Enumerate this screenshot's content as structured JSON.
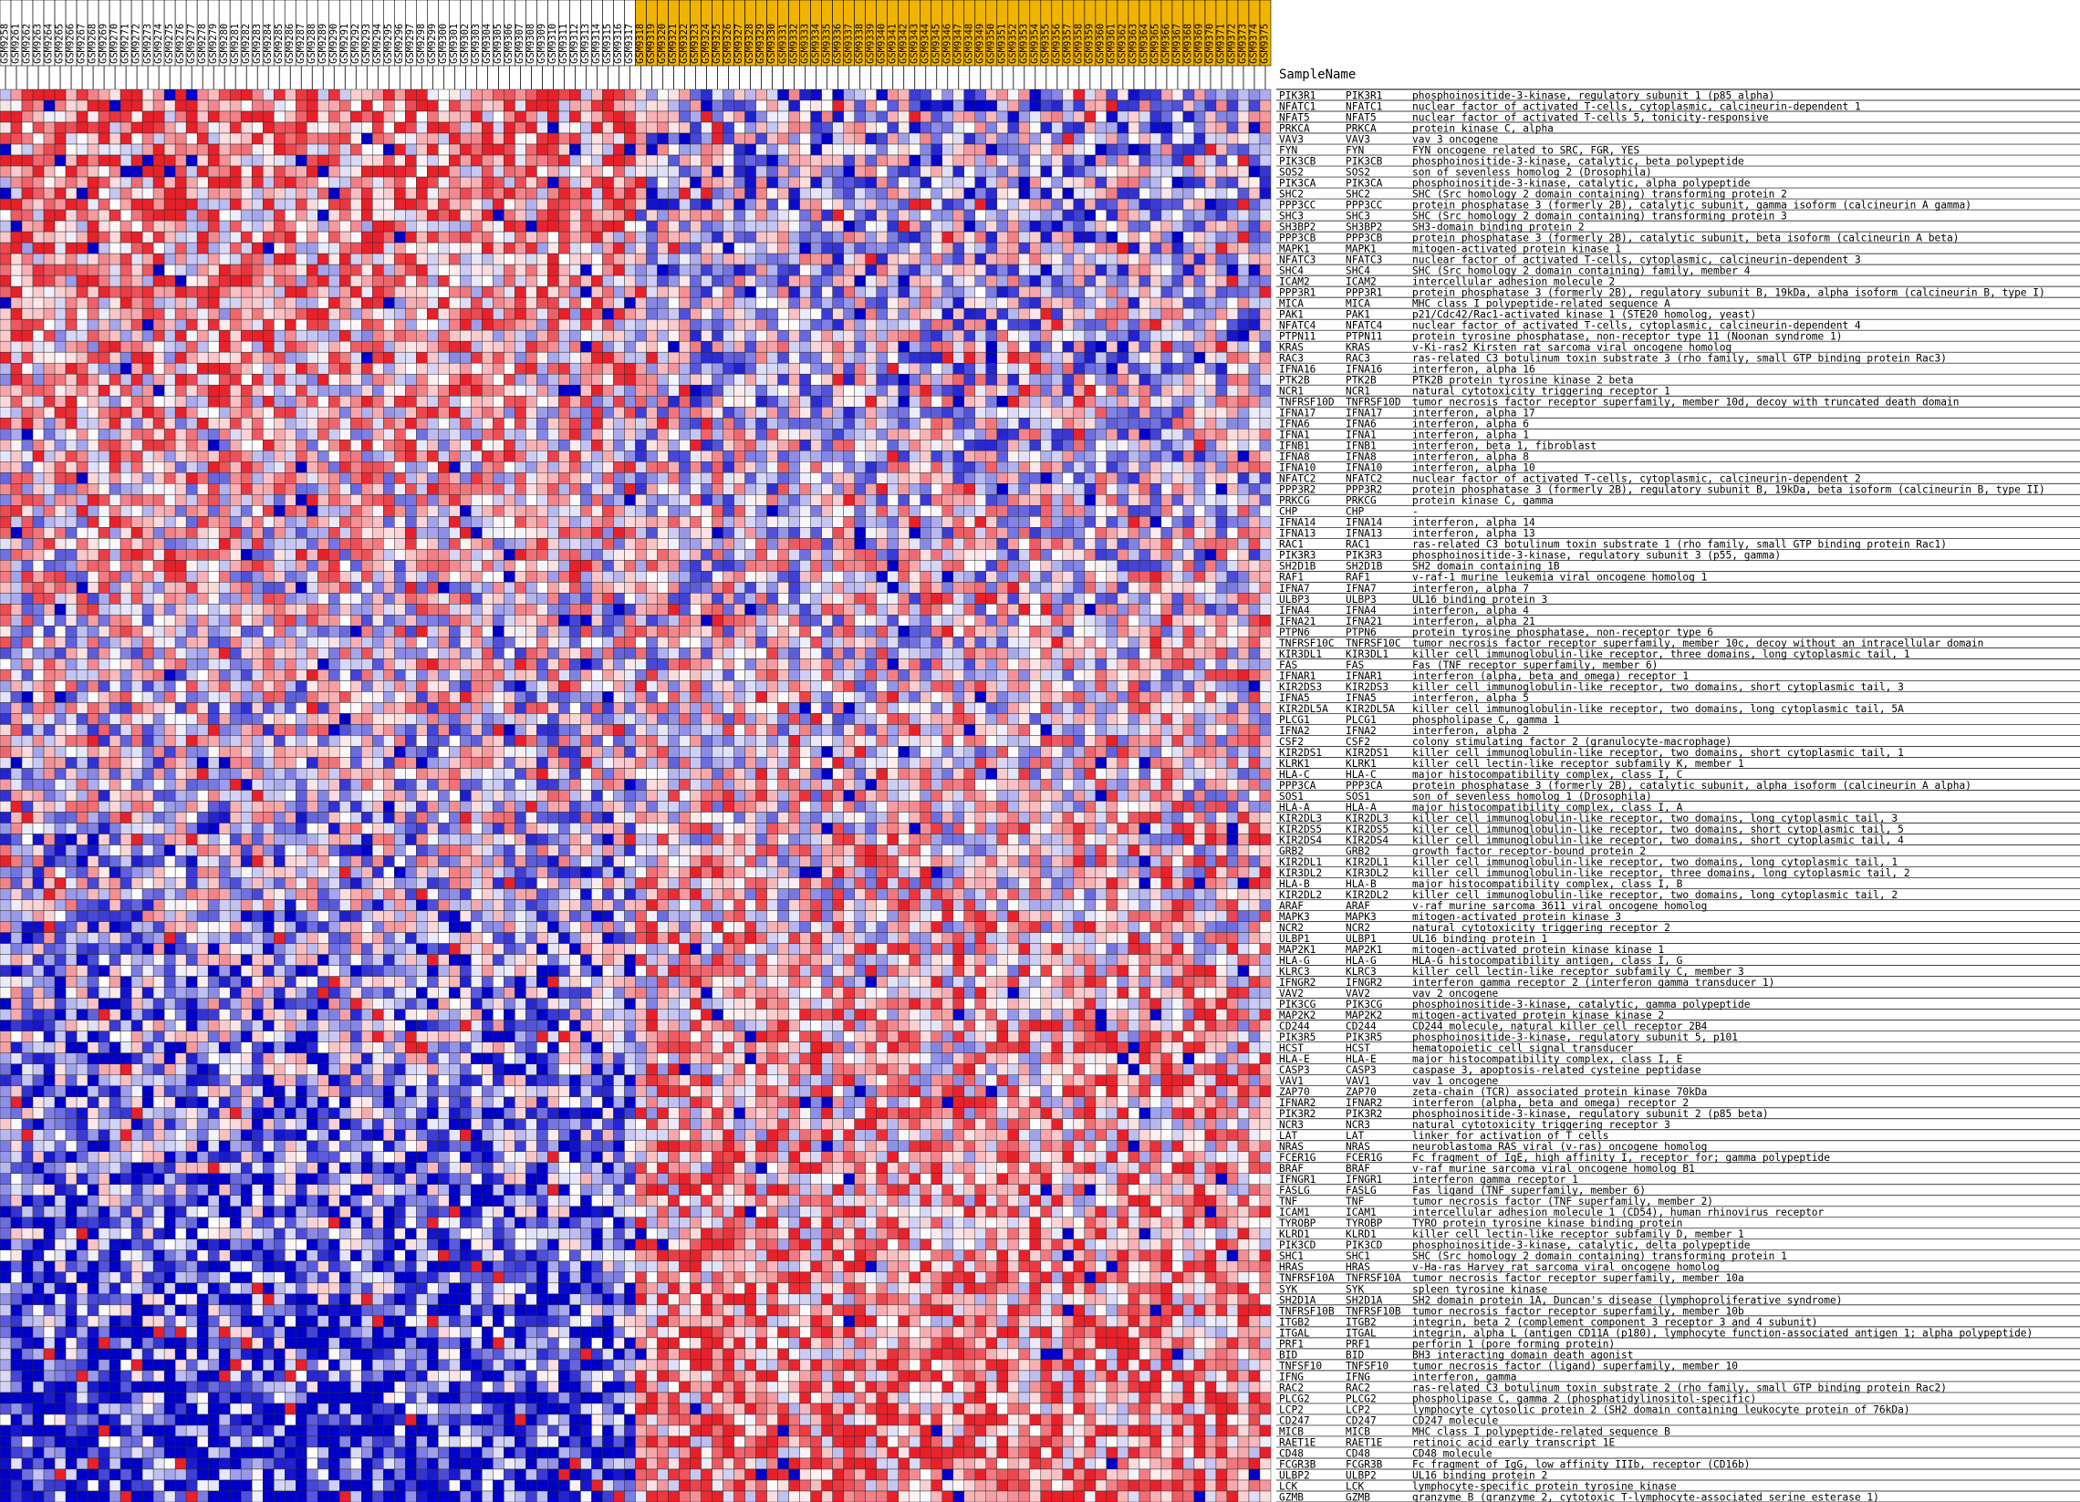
{
  "header": {
    "sample_name_label": "SampleName"
  },
  "chart_data": {
    "type": "heatmap",
    "title": "",
    "row_header": "SampleName",
    "n_columns": 116,
    "column_group_colors": {
      "group_a": "#ffffff",
      "group_b": "#f0b400"
    },
    "column_groups": {
      "group_a_count": 58,
      "group_b_count": 58
    },
    "columns": [
      "GSM9258",
      "GSM9261",
      "GSM9262",
      "GSM9263",
      "GSM9264",
      "GSM9265",
      "GSM9266",
      "GSM9267",
      "GSM9268",
      "GSM9269",
      "GSM9270",
      "GSM9271",
      "GSM9272",
      "GSM9273",
      "GSM9274",
      "GSM9275",
      "GSM9276",
      "GSM9277",
      "GSM9278",
      "GSM9279",
      "GSM9280",
      "GSM9281",
      "GSM9282",
      "GSM9283",
      "GSM9284",
      "GSM9285",
      "GSM9286",
      "GSM9287",
      "GSM9288",
      "GSM9289",
      "GSM9290",
      "GSM9291",
      "GSM9292",
      "GSM9293",
      "GSM9294",
      "GSM9295",
      "GSM9296",
      "GSM9297",
      "GSM9298",
      "GSM9299",
      "GSM9300",
      "GSM9301",
      "GSM9302",
      "GSM9303",
      "GSM9304",
      "GSM9305",
      "GSM9306",
      "GSM9307",
      "GSM9308",
      "GSM9309",
      "GSM9310",
      "GSM9311",
      "GSM9312",
      "GSM9313",
      "GSM9314",
      "GSM9315",
      "GSM9316",
      "GSM9317",
      "GSM9318",
      "GSM9319",
      "GSM9320",
      "GSM9321",
      "GSM9322",
      "GSM9323",
      "GSM9324",
      "GSM9325",
      "GSM9326",
      "GSM9327",
      "GSM9328",
      "GSM9329",
      "GSM9330",
      "GSM9331",
      "GSM9332",
      "GSM9333",
      "GSM9334",
      "GSM9335",
      "GSM9336",
      "GSM9337",
      "GSM9338",
      "GSM9339",
      "GSM9340",
      "GSM9341",
      "GSM9342",
      "GSM9343",
      "GSM9344",
      "GSM9345",
      "GSM9346",
      "GSM9347",
      "GSM9348",
      "GSM9349",
      "GSM9350",
      "GSM9351",
      "GSM9352",
      "GSM9353",
      "GSM9354",
      "GSM9355",
      "GSM9356",
      "GSM9357",
      "GSM9358",
      "GSM9359",
      "GSM9360",
      "GSM9361",
      "GSM9362",
      "GSM9363",
      "GSM9364",
      "GSM9365",
      "GSM9366",
      "GSM9367",
      "GSM9368",
      "GSM9369",
      "GSM9370",
      "GSM9371",
      "GSM9372",
      "GSM9373",
      "GSM9374",
      "GSM9375"
    ],
    "rows": [
      [
        "PIK3R1",
        "PIK3R1",
        "phosphoinositide-3-kinase, regulatory subunit 1 (p85 alpha)"
      ],
      [
        "NFATC1",
        "NFATC1",
        "nuclear factor of activated T-cells, cytoplasmic, calcineurin-dependent 1"
      ],
      [
        "NFAT5",
        "NFAT5",
        "nuclear factor of activated T-cells 5, tonicity-responsive"
      ],
      [
        "PRKCA",
        "PRKCA",
        "protein kinase C, alpha"
      ],
      [
        "VAV3",
        "VAV3",
        "vav 3 oncogene"
      ],
      [
        "FYN",
        "FYN",
        "FYN oncogene related to SRC, FGR, YES"
      ],
      [
        "PIK3CB",
        "PIK3CB",
        "phosphoinositide-3-kinase, catalytic, beta polypeptide"
      ],
      [
        "SOS2",
        "SOS2",
        "son of sevenless homolog 2 (Drosophila)"
      ],
      [
        "PIK3CA",
        "PIK3CA",
        "phosphoinositide-3-kinase, catalytic, alpha polypeptide"
      ],
      [
        "SHC2",
        "SHC2",
        "SHC (Src homology 2 domain containing) transforming protein 2"
      ],
      [
        "PPP3CC",
        "PPP3CC",
        "protein phosphatase 3 (formerly 2B), catalytic subunit, gamma isoform (calcineurin A gamma)"
      ],
      [
        "SHC3",
        "SHC3",
        "SHC (Src homology 2 domain containing) transforming protein 3"
      ],
      [
        "SH3BP2",
        "SH3BP2",
        "SH3-domain binding protein 2"
      ],
      [
        "PPP3CB",
        "PPP3CB",
        "protein phosphatase 3 (formerly 2B), catalytic subunit, beta isoform (calcineurin A beta)"
      ],
      [
        "MAPK1",
        "MAPK1",
        "mitogen-activated protein kinase 1"
      ],
      [
        "NFATC3",
        "NFATC3",
        "nuclear factor of activated T-cells, cytoplasmic, calcineurin-dependent 3"
      ],
      [
        "SHC4",
        "SHC4",
        "SHC (Src homology 2 domain containing) family, member 4"
      ],
      [
        "ICAM2",
        "ICAM2",
        "intercellular adhesion molecule 2"
      ],
      [
        "PPP3R1",
        "PPP3R1",
        "protein phosphatase 3 (formerly 2B), regulatory subunit B, 19kDa, alpha isoform (calcineurin B, type I)"
      ],
      [
        "MICA",
        "MICA",
        "MHC class I polypeptide-related sequence A"
      ],
      [
        "PAK1",
        "PAK1",
        "p21/Cdc42/Rac1-activated kinase 1 (STE20 homolog, yeast)"
      ],
      [
        "NFATC4",
        "NFATC4",
        "nuclear factor of activated T-cells, cytoplasmic, calcineurin-dependent 4"
      ],
      [
        "PTPN11",
        "PTPN11",
        "protein tyrosine phosphatase, non-receptor type 11 (Noonan syndrome 1)"
      ],
      [
        "KRAS",
        "KRAS",
        "v-Ki-ras2 Kirsten rat sarcoma viral oncogene homolog"
      ],
      [
        "RAC3",
        "RAC3",
        "ras-related C3 botulinum toxin substrate 3 (rho family, small GTP binding protein Rac3)"
      ],
      [
        "IFNA16",
        "IFNA16",
        "interferon, alpha 16"
      ],
      [
        "PTK2B",
        "PTK2B",
        "PTK2B protein tyrosine kinase 2 beta"
      ],
      [
        "NCR1",
        "NCR1",
        "natural cytotoxicity triggering receptor 1"
      ],
      [
        "TNFRSF10D",
        "TNFRSF10D",
        "tumor necrosis factor receptor superfamily, member 10d, decoy with truncated death domain"
      ],
      [
        "IFNA17",
        "IFNA17",
        "interferon, alpha 17"
      ],
      [
        "IFNA6",
        "IFNA6",
        "interferon, alpha 6"
      ],
      [
        "IFNA1",
        "IFNA1",
        "interferon, alpha 1"
      ],
      [
        "IFNB1",
        "IFNB1",
        "interferon, beta 1, fibroblast"
      ],
      [
        "IFNA8",
        "IFNA8",
        "interferon, alpha 8"
      ],
      [
        "IFNA10",
        "IFNA10",
        "interferon, alpha 10"
      ],
      [
        "NFATC2",
        "NFATC2",
        "nuclear factor of activated T-cells, cytoplasmic, calcineurin-dependent 2"
      ],
      [
        "PPP3R2",
        "PPP3R2",
        "protein phosphatase 3 (formerly 2B), regulatory subunit B, 19kDa, beta isoform (calcineurin B, type II)"
      ],
      [
        "PRKCG",
        "PRKCG",
        "protein kinase C, gamma"
      ],
      [
        "CHP",
        "CHP",
        "-"
      ],
      [
        "IFNA14",
        "IFNA14",
        "interferon, alpha 14"
      ],
      [
        "IFNA13",
        "IFNA13",
        "interferon, alpha 13"
      ],
      [
        "RAC1",
        "RAC1",
        "ras-related C3 botulinum toxin substrate 1 (rho family, small GTP binding protein Rac1)"
      ],
      [
        "PIK3R3",
        "PIK3R3",
        "phosphoinositide-3-kinase, regulatory subunit 3 (p55, gamma)"
      ],
      [
        "SH2D1B",
        "SH2D1B",
        "SH2 domain containing 1B"
      ],
      [
        "RAF1",
        "RAF1",
        "v-raf-1 murine leukemia viral oncogene homolog 1"
      ],
      [
        "IFNA7",
        "IFNA7",
        "interferon, alpha 7"
      ],
      [
        "ULBP3",
        "ULBP3",
        "UL16 binding protein 3"
      ],
      [
        "IFNA4",
        "IFNA4",
        "interferon, alpha 4"
      ],
      [
        "IFNA21",
        "IFNA21",
        "interferon, alpha 21"
      ],
      [
        "PTPN6",
        "PTPN6",
        "protein tyrosine phosphatase, non-receptor type 6"
      ],
      [
        "TNFRSF10C",
        "TNFRSF10C",
        "tumor necrosis factor receptor superfamily, member 10c, decoy without an intracellular domain"
      ],
      [
        "KIR3DL1",
        "KIR3DL1",
        "killer cell immunoglobulin-like receptor, three domains, long cytoplasmic tail, 1"
      ],
      [
        "FAS",
        "FAS",
        "Fas (TNF receptor superfamily, member 6)"
      ],
      [
        "IFNAR1",
        "IFNAR1",
        "interferon (alpha, beta and omega) receptor 1"
      ],
      [
        "KIR2DS3",
        "KIR2DS3",
        "killer cell immunoglobulin-like receptor, two domains, short cytoplasmic tail, 3"
      ],
      [
        "IFNA5",
        "IFNA5",
        "interferon, alpha 5"
      ],
      [
        "KIR2DL5A",
        "KIR2DL5A",
        "killer cell immunoglobulin-like receptor, two domains, long cytoplasmic tail, 5A"
      ],
      [
        "PLCG1",
        "PLCG1",
        "phospholipase C, gamma 1"
      ],
      [
        "IFNA2",
        "IFNA2",
        "interferon, alpha 2"
      ],
      [
        "CSF2",
        "CSF2",
        "colony stimulating factor 2 (granulocyte-macrophage)"
      ],
      [
        "KIR2DS1",
        "KIR2DS1",
        "killer cell immunoglobulin-like receptor, two domains, short cytoplasmic tail, 1"
      ],
      [
        "KLRK1",
        "KLRK1",
        "killer cell lectin-like receptor subfamily K, member 1"
      ],
      [
        "HLA-C",
        "HLA-C",
        "major histocompatibility complex, class I, C"
      ],
      [
        "PPP3CA",
        "PPP3CA",
        "protein phosphatase 3 (formerly 2B), catalytic subunit, alpha isoform (calcineurin A alpha)"
      ],
      [
        "SOS1",
        "SOS1",
        "son of sevenless homolog 1 (Drosophila)"
      ],
      [
        "HLA-A",
        "HLA-A",
        "major histocompatibility complex, class I, A"
      ],
      [
        "KIR2DL3",
        "KIR2DL3",
        "killer cell immunoglobulin-like receptor, two domains, long cytoplasmic tail, 3"
      ],
      [
        "KIR2DS5",
        "KIR2DS5",
        "killer cell immunoglobulin-like receptor, two domains, short cytoplasmic tail, 5"
      ],
      [
        "KIR2DS4",
        "KIR2DS4",
        "killer cell immunoglobulin-like receptor, two domains, short cytoplasmic tail, 4"
      ],
      [
        "GRB2",
        "GRB2",
        "growth factor receptor-bound protein 2"
      ],
      [
        "KIR2DL1",
        "KIR2DL1",
        "killer cell immunoglobulin-like receptor, two domains, long cytoplasmic tail, 1"
      ],
      [
        "KIR3DL2",
        "KIR3DL2",
        "killer cell immunoglobulin-like receptor, three domains, long cytoplasmic tail, 2"
      ],
      [
        "HLA-B",
        "HLA-B",
        "major histocompatibility complex, class I, B"
      ],
      [
        "KIR2DL2",
        "KIR2DL2",
        "killer cell immunoglobulin-like receptor, two domains, long cytoplasmic tail, 2"
      ],
      [
        "ARAF",
        "ARAF",
        "v-raf murine sarcoma 3611 viral oncogene homolog"
      ],
      [
        "MAPK3",
        "MAPK3",
        "mitogen-activated protein kinase 3"
      ],
      [
        "NCR2",
        "NCR2",
        "natural cytotoxicity triggering receptor 2"
      ],
      [
        "ULBP1",
        "ULBP1",
        "UL16 binding protein 1"
      ],
      [
        "MAP2K1",
        "MAP2K1",
        "mitogen-activated protein kinase kinase 1"
      ],
      [
        "HLA-G",
        "HLA-G",
        "HLA-G histocompatibility antigen, class I, G"
      ],
      [
        "KLRC3",
        "KLRC3",
        "killer cell lectin-like receptor subfamily C, member 3"
      ],
      [
        "IFNGR2",
        "IFNGR2",
        "interferon gamma receptor 2 (interferon gamma transducer 1)"
      ],
      [
        "VAV2",
        "VAV2",
        "vav 2 oncogene"
      ],
      [
        "PIK3CG",
        "PIK3CG",
        "phosphoinositide-3-kinase, catalytic, gamma polypeptide"
      ],
      [
        "MAP2K2",
        "MAP2K2",
        "mitogen-activated protein kinase kinase 2"
      ],
      [
        "CD244",
        "CD244",
        "CD244 molecule, natural killer cell receptor 2B4"
      ],
      [
        "PIK3R5",
        "PIK3R5",
        "phosphoinositide-3-kinase, regulatory subunit 5, p101"
      ],
      [
        "HCST",
        "HCST",
        "hematopoietic cell signal transducer"
      ],
      [
        "HLA-E",
        "HLA-E",
        "major histocompatibility complex, class I, E"
      ],
      [
        "CASP3",
        "CASP3",
        "caspase 3, apoptosis-related cysteine peptidase"
      ],
      [
        "VAV1",
        "VAV1",
        "vav 1 oncogene"
      ],
      [
        "ZAP70",
        "ZAP70",
        "zeta-chain (TCR) associated protein kinase 70kDa"
      ],
      [
        "IFNAR2",
        "IFNAR2",
        "interferon (alpha, beta and omega) receptor 2"
      ],
      [
        "PIK3R2",
        "PIK3R2",
        "phosphoinositide-3-kinase, regulatory subunit 2 (p85 beta)"
      ],
      [
        "NCR3",
        "NCR3",
        "natural cytotoxicity triggering receptor 3"
      ],
      [
        "LAT",
        "LAT",
        "linker for activation of T cells"
      ],
      [
        "NRAS",
        "NRAS",
        "neuroblastoma RAS viral (v-ras) oncogene homolog"
      ],
      [
        "FCER1G",
        "FCER1G",
        "Fc fragment of IgE, high affinity I, receptor for; gamma polypeptide"
      ],
      [
        "BRAF",
        "BRAF",
        "v-raf murine sarcoma viral oncogene homolog B1"
      ],
      [
        "IFNGR1",
        "IFNGR1",
        "interferon gamma receptor 1"
      ],
      [
        "FASLG",
        "FASLG",
        "Fas ligand (TNF superfamily, member 6)"
      ],
      [
        "TNF",
        "TNF",
        "tumor necrosis factor (TNF superfamily, member 2)"
      ],
      [
        "ICAM1",
        "ICAM1",
        "intercellular adhesion molecule 1 (CD54), human rhinovirus receptor"
      ],
      [
        "TYROBP",
        "TYROBP",
        "TYRO protein tyrosine kinase binding protein"
      ],
      [
        "KLRD1",
        "KLRD1",
        "killer cell lectin-like receptor subfamily D, member 1"
      ],
      [
        "PIK3CD",
        "PIK3CD",
        "phosphoinositide-3-kinase, catalytic, delta polypeptide"
      ],
      [
        "SHC1",
        "SHC1",
        "SHC (Src homology 2 domain containing) transforming protein 1"
      ],
      [
        "HRAS",
        "HRAS",
        "v-Ha-ras Harvey rat sarcoma viral oncogene homolog"
      ],
      [
        "TNFRSF10A",
        "TNFRSF10A",
        "tumor necrosis factor receptor superfamily, member 10a"
      ],
      [
        "SYK",
        "SYK",
        "spleen tyrosine kinase"
      ],
      [
        "SH2D1A",
        "SH2D1A",
        "SH2 domain protein 1A, Duncan's disease (lymphoproliferative syndrome)"
      ],
      [
        "TNFRSF10B",
        "TNFRSF10B",
        "tumor necrosis factor receptor superfamily, member 10b"
      ],
      [
        "ITGB2",
        "ITGB2",
        "integrin, beta 2 (complement component 3 receptor 3 and 4 subunit)"
      ],
      [
        "ITGAL",
        "ITGAL",
        "integrin, alpha L (antigen CD11A (p180), lymphocyte function-associated antigen 1; alpha polypeptide)"
      ],
      [
        "PRF1",
        "PRF1",
        "perforin 1 (pore forming protein)"
      ],
      [
        "BID",
        "BID",
        "BH3 interacting domain death agonist"
      ],
      [
        "TNFSF10",
        "TNFSF10",
        "tumor necrosis factor (ligand) superfamily, member 10"
      ],
      [
        "IFNG",
        "IFNG",
        "interferon, gamma"
      ],
      [
        "RAC2",
        "RAC2",
        "ras-related C3 botulinum toxin substrate 2 (rho family, small GTP binding protein Rac2)"
      ],
      [
        "PLCG2",
        "PLCG2",
        "phospholipase C, gamma 2 (phosphatidylinositol-specific)"
      ],
      [
        "LCP2",
        "LCP2",
        "lymphocyte cytosolic protein 2 (SH2 domain containing leukocyte protein of 76kDa)"
      ],
      [
        "CD247",
        "CD247",
        "CD247 molecule"
      ],
      [
        "MICB",
        "MICB",
        "MHC class I polypeptide-related sequence B"
      ],
      [
        "RAET1E",
        "RAET1E",
        "retinoic acid early transcript 1E"
      ],
      [
        "CD48",
        "CD48",
        "CD48 molecule"
      ],
      [
        "FCGR3B",
        "FCGR3B",
        "Fc fragment of IgG, low affinity IIIb, receptor (CD16b)"
      ],
      [
        "ULBP2",
        "ULBP2",
        "UL16 binding protein 2"
      ],
      [
        "LCK",
        "LCK",
        "lymphocyte-specific protein tyrosine kinase"
      ],
      [
        "GZMB",
        "GZMB",
        "granzyme B (granzyme 2, cytotoxic T-lymphocyte-associated serine esterase 1)"
      ]
    ],
    "color_scale": {
      "low": "#0000c8",
      "mid": "#ffffff",
      "high": "#e8202a"
    },
    "value_range": [
      -2,
      2
    ],
    "grid": true,
    "legend": "none"
  }
}
